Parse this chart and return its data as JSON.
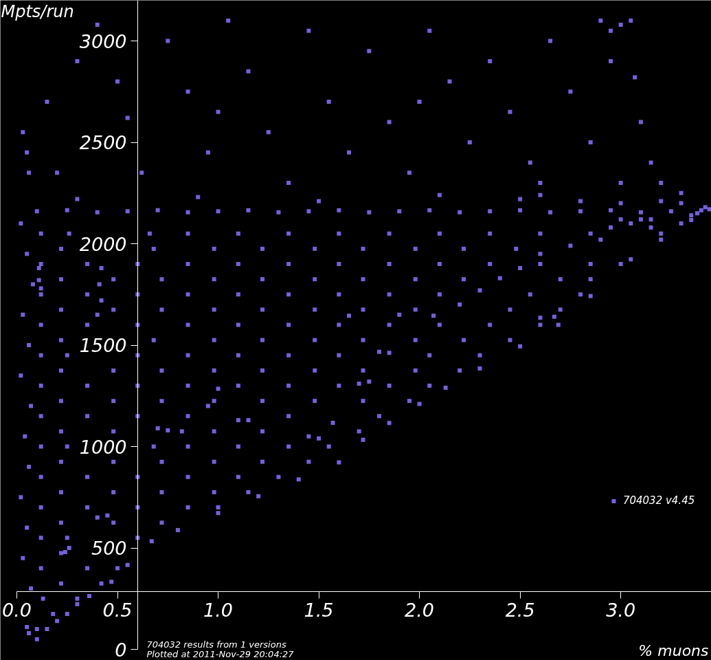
{
  "chart_data": {
    "type": "scatter",
    "xlabel": "% muons",
    "ylabel": "Mpts/run",
    "xlim": [
      0,
      3.45
    ],
    "ylim": [
      0,
      3200
    ],
    "xticks": [
      {
        "value": 0,
        "label": "0.0"
      },
      0.5,
      {
        "value": 1,
        "label": "1.0"
      },
      1.5,
      {
        "value": 2,
        "label": "2.0"
      },
      2.5,
      {
        "value": 3,
        "label": "3.0"
      }
    ],
    "yticks": [
      0,
      500,
      1000,
      1500,
      2000,
      2500,
      3000
    ],
    "grid": false,
    "marker": "square",
    "legend": "bottom right",
    "annotations": [
      "704032 results from 1 versions",
      "Plotted at 2011-Nov-29 20:04:27"
    ],
    "series": [
      {
        "name": "704032 v4.45",
        "color": "#7361dd",
        "x": [
          0.05,
          0.15,
          0.3,
          0.4,
          0.55,
          0.62,
          0.75,
          0.85,
          0.95,
          1.05,
          1.15,
          1.25,
          1.35,
          1.45,
          1.55,
          1.65,
          1.75,
          1.85,
          1.95,
          2.05,
          2.15,
          2.25,
          2.35,
          2.45,
          2.55,
          2.65,
          2.75,
          2.85,
          2.9,
          2.95,
          3.0,
          3.07,
          3.1,
          3.15,
          3.2,
          0.2,
          0.5,
          1.0,
          2.0,
          2.6,
          3.0,
          3.3,
          2.95,
          3.05,
          0.3,
          0.9,
          1.5,
          2.1,
          2.5,
          2.6,
          2.8,
          3.0,
          3.2,
          3.3,
          0.1,
          0.25,
          0.4,
          0.55,
          0.7,
          0.85,
          1.0,
          1.15,
          1.3,
          1.45,
          1.6,
          1.75,
          1.9,
          2.05,
          2.2,
          2.35,
          2.5,
          2.65,
          2.8,
          2.95,
          3.1,
          3.25,
          3.4,
          3.35,
          3.42,
          3.3,
          3.15,
          3.1,
          3.0,
          2.95,
          3.05,
          3.15,
          3.38,
          0.12,
          0.26,
          0.66,
          0.85,
          1.1,
          1.35,
          1.6,
          1.85,
          2.1,
          2.35,
          2.6,
          2.85,
          3.2,
          0.22,
          0.68,
          0.98,
          1.22,
          1.48,
          1.72,
          1.98,
          2.22,
          2.48,
          2.6,
          2.75,
          2.9,
          0.12,
          0.35,
          0.6,
          0.85,
          1.1,
          1.35,
          1.6,
          1.85,
          2.1,
          2.35,
          2.6,
          2.85,
          3.0,
          2.5,
          0.22,
          0.48,
          0.72,
          0.98,
          1.22,
          1.48,
          1.72,
          1.98,
          2.22,
          2.7,
          2.85,
          2.4,
          0.12,
          0.35,
          0.6,
          0.85,
          1.1,
          1.35,
          1.6,
          1.85,
          2.1,
          2.55,
          2.8,
          2.3,
          0.22,
          0.48,
          0.72,
          0.98,
          1.22,
          1.48,
          1.72,
          1.98,
          2.45,
          2.7,
          2.2,
          0.12,
          0.35,
          0.6,
          0.85,
          1.1,
          1.35,
          1.6,
          1.85,
          2.1,
          2.35,
          2.6,
          1.65,
          1.9,
          2.07,
          2.6,
          2.67,
          0.22,
          0.68,
          0.98,
          1.22,
          1.48,
          1.72,
          1.98,
          2.22,
          2.45,
          0.12,
          0.25,
          0.6,
          0.85,
          1.1,
          1.35,
          1.6,
          2.05,
          2.3,
          1.8,
          1.85,
          0.22,
          0.48,
          0.72,
          0.98,
          1.22,
          1.48,
          1.72,
          1.98,
          2.2,
          0.12,
          0.35,
          0.6,
          0.85,
          1.1,
          1.35,
          1.6,
          1.85,
          2.05,
          1.0,
          1.7,
          1.75,
          0.22,
          0.48,
          0.72,
          0.98,
          1.22,
          1.48,
          1.72,
          1.95,
          0.95,
          0.12,
          0.35,
          0.6,
          0.85,
          1.35,
          1.8,
          1.1,
          1.15,
          1.57,
          0.22,
          0.48,
          0.98,
          1.22,
          1.7,
          0.7,
          0.75,
          0.82,
          1.45,
          1.5,
          0.12,
          0.25,
          0.68,
          0.85,
          1.1,
          1.35,
          1.55,
          0.22,
          0.48,
          0.72,
          0.98,
          1.22,
          1.45,
          0.12,
          0.35,
          0.6,
          0.85,
          1.1,
          1.3,
          0.22,
          0.48,
          0.72,
          0.98,
          1.15,
          0.12,
          0.35,
          0.6,
          0.85,
          1.0,
          0.22,
          0.48,
          0.72,
          0.4,
          0.45,
          0.12,
          0.25,
          0.6,
          0.22,
          0.26,
          0.24,
          0.12,
          0.35,
          0.5,
          0.22,
          0.42,
          0.13,
          0.3,
          0.18,
          0.25,
          0.1,
          0.15,
          0.03,
          0.06,
          0.02,
          0.05,
          0.08,
          0.03,
          0.06,
          0.02,
          0.07,
          0.04,
          0.06,
          0.02,
          0.05,
          0.03,
          0.07,
          0.05,
          0.06,
          0.11,
          0.11,
          0.12,
          0.42,
          0.41,
          0.42,
          0.4,
          0.1,
          0.2,
          0.3,
          0.36,
          0.47,
          0.55,
          0.67,
          0.8,
          1.0,
          1.2,
          1.4,
          1.6,
          1.72,
          1.85,
          2.0,
          2.13,
          2.3,
          2.5,
          2.69,
          2.85,
          3.05,
          3.2,
          3.35,
          3.44
        ],
        "values": [
          2450,
          2700,
          2900,
          3080,
          2620,
          2350,
          3000,
          2750,
          2450,
          3100,
          2850,
          2550,
          2300,
          3050,
          2700,
          2450,
          2950,
          2600,
          2350,
          3050,
          2800,
          2500,
          2900,
          2650,
          2400,
          3000,
          2750,
          2500,
          3100,
          2900,
          3080,
          2820,
          2600,
          2400,
          2300,
          2350,
          2800,
          2650,
          2700,
          2300,
          2300,
          2250,
          3050,
          3100,
          2220,
          2230,
          2210,
          2240,
          2220,
          2240,
          2210,
          2200,
          2210,
          2200,
          2160,
          2165,
          2155,
          2160,
          2165,
          2155,
          2160,
          2165,
          2155,
          2160,
          2165,
          2155,
          2160,
          2165,
          2155,
          2160,
          2165,
          2155,
          2160,
          2165,
          2155,
          2160,
          2165,
          2140,
          2180,
          2100,
          2080,
          2120,
          2120,
          2080,
          2100,
          2120,
          2150,
          2050,
          2050,
          2050,
          2050,
          2050,
          2050,
          2050,
          2050,
          2050,
          2050,
          2050,
          2050,
          2050,
          1975,
          1975,
          1975,
          1975,
          1975,
          1975,
          1975,
          1975,
          1975,
          1950,
          1990,
          2020,
          1900,
          1900,
          1900,
          1900,
          1900,
          1900,
          1900,
          1900,
          1900,
          1900,
          1900,
          1900,
          1900,
          1880,
          1825,
          1825,
          1825,
          1825,
          1825,
          1825,
          1825,
          1825,
          1825,
          1825,
          1825,
          1830,
          1750,
          1750,
          1750,
          1750,
          1750,
          1750,
          1750,
          1750,
          1750,
          1750,
          1750,
          1770,
          1675,
          1675,
          1675,
          1675,
          1675,
          1675,
          1675,
          1675,
          1675,
          1675,
          1700,
          1600,
          1600,
          1600,
          1600,
          1600,
          1600,
          1600,
          1600,
          1600,
          1600,
          1600,
          1645,
          1650,
          1645,
          1635,
          1640,
          1525,
          1525,
          1525,
          1525,
          1525,
          1525,
          1525,
          1525,
          1525,
          1450,
          1450,
          1450,
          1450,
          1450,
          1450,
          1450,
          1450,
          1450,
          1467,
          1462,
          1375,
          1375,
          1375,
          1375,
          1375,
          1375,
          1375,
          1375,
          1375,
          1300,
          1300,
          1300,
          1300,
          1300,
          1300,
          1300,
          1300,
          1300,
          1285,
          1310,
          1320,
          1225,
          1225,
          1225,
          1225,
          1225,
          1225,
          1225,
          1225,
          1200,
          1150,
          1150,
          1150,
          1150,
          1150,
          1150,
          1130,
          1130,
          1117,
          1075,
          1075,
          1075,
          1075,
          1075,
          1090,
          1080,
          1075,
          1050,
          1040,
          1000,
          1000,
          1000,
          1000,
          1000,
          1000,
          1000,
          925,
          925,
          925,
          925,
          925,
          925,
          850,
          850,
          850,
          850,
          850,
          850,
          775,
          775,
          775,
          775,
          775,
          700,
          700,
          700,
          700,
          700,
          625,
          625,
          625,
          650,
          660,
          550,
          550,
          550,
          475,
          500,
          480,
          400,
          400,
          400,
          325,
          325,
          250,
          250,
          175,
          175,
          100,
          100,
          2550,
          2350,
          2100,
          1950,
          1800,
          1650,
          1500,
          1350,
          1200,
          1050,
          900,
          750,
          600,
          450,
          300,
          110,
          80,
          1880,
          1820,
          1780,
          1880,
          1800,
          1720,
          1650,
          50,
          140,
          223,
          263,
          333,
          416,
          533,
          588,
          672,
          755,
          838,
          922,
          1033,
          1116,
          1210,
          1290,
          1385,
          1494,
          1600,
          1742,
          1923,
          2020,
          2117,
          2170
        ]
      }
    ]
  }
}
